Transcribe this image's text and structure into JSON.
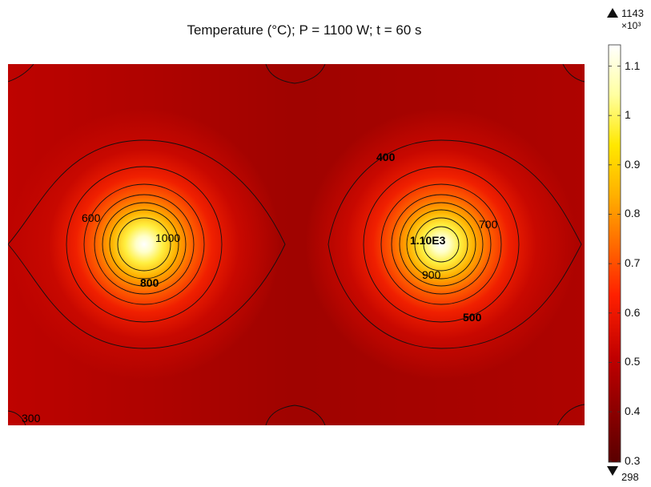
{
  "chart_data": {
    "type": "heatmap",
    "title": "Temperature (°C); P = 1100 W; t = 60 s",
    "hotspots": [
      {
        "name": "left",
        "peak_label": "1000"
      },
      {
        "name": "right",
        "peak_label": "1.10E3"
      }
    ],
    "contour_levels": [
      300,
      400,
      500,
      600,
      700,
      800,
      900,
      1000,
      1100
    ],
    "contour_labels": [
      "300",
      "400",
      "500",
      "600",
      "700",
      "800",
      "900",
      "1000",
      "1.10E3"
    ],
    "colorbar": {
      "max_marker": "1143",
      "min_marker": "298",
      "multiplier": "×10³",
      "ticks": [
        "1.1",
        "1",
        "0.9",
        "0.8",
        "0.7",
        "0.6",
        "0.5",
        "0.4",
        "0.3"
      ],
      "tick_values": [
        1.1,
        1.0,
        0.9,
        0.8,
        0.7,
        0.6,
        0.5,
        0.4,
        0.3
      ],
      "range": [
        0.298,
        1.143
      ],
      "colormap": [
        "#5a0000",
        "#8b0000",
        "#c00000",
        "#ff2000",
        "#ff6a00",
        "#ffb000",
        "#ffe800",
        "#ffffa0",
        "#ffffff"
      ]
    }
  }
}
